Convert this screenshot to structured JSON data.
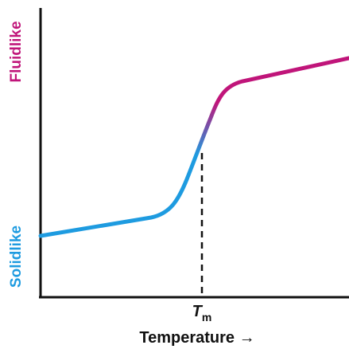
{
  "chart_data": {
    "type": "line",
    "y_top_label": "Fluidlike",
    "y_bottom_label": "Solidlike",
    "xlabel": "Temperature →",
    "marker": {
      "symbol": "T",
      "subscript": "m"
    },
    "grid": false,
    "colors": {
      "solid": "#1e9be0",
      "fluid": "#c0157a",
      "axis": "#111111"
    }
  }
}
